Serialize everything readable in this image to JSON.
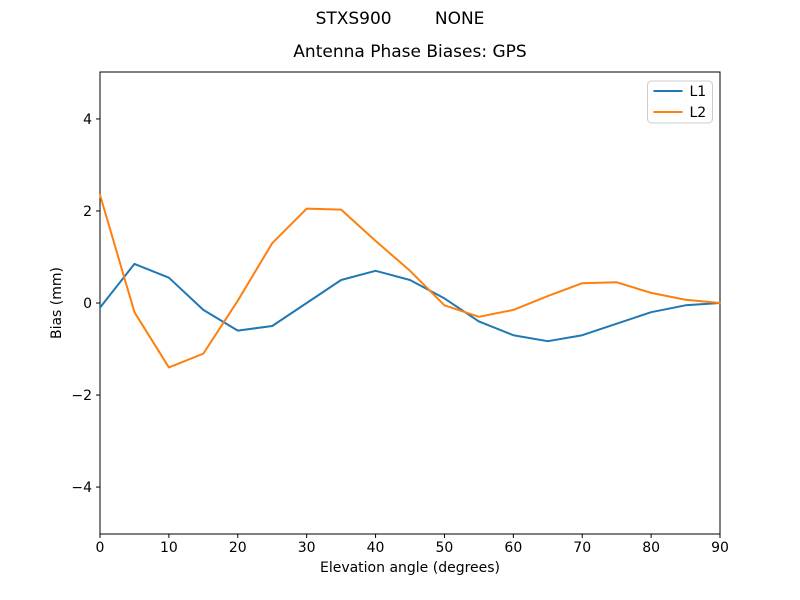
{
  "suptitle": "STXS900        NONE",
  "chart_data": {
    "type": "line",
    "title": "Antenna Phase Biases: GPS",
    "xlabel": "Elevation angle (degrees)",
    "ylabel": "Bias (mm)",
    "x": [
      0,
      5,
      10,
      15,
      20,
      25,
      30,
      35,
      40,
      45,
      50,
      55,
      60,
      65,
      70,
      75,
      80,
      85,
      90
    ],
    "series": [
      {
        "name": "L1",
        "color": "#1f77b4",
        "values": [
          -0.1,
          0.85,
          0.55,
          -0.15,
          -0.6,
          -0.5,
          0.0,
          0.5,
          0.7,
          0.5,
          0.1,
          -0.4,
          -0.7,
          -0.83,
          -0.7,
          -0.45,
          -0.2,
          -0.05,
          0.0
        ]
      },
      {
        "name": "L2",
        "color": "#ff7f0e",
        "values": [
          2.35,
          -0.2,
          -1.4,
          -1.1,
          0.05,
          1.3,
          2.05,
          2.03,
          1.35,
          0.7,
          -0.05,
          -0.3,
          -0.15,
          0.15,
          0.43,
          0.45,
          0.22,
          0.07,
          0.0
        ]
      }
    ],
    "xlim": [
      0,
      90
    ],
    "ylim": [
      -5.02,
      5.02
    ],
    "xticks": [
      0,
      10,
      20,
      30,
      40,
      50,
      60,
      70,
      80,
      90
    ],
    "yticks": [
      -4,
      -2,
      0,
      2,
      4
    ],
    "grid": false,
    "legend_position": "upper right",
    "axis_color": "#000000",
    "legend_border_color": "#cccccc",
    "background_color": "#ffffff"
  }
}
